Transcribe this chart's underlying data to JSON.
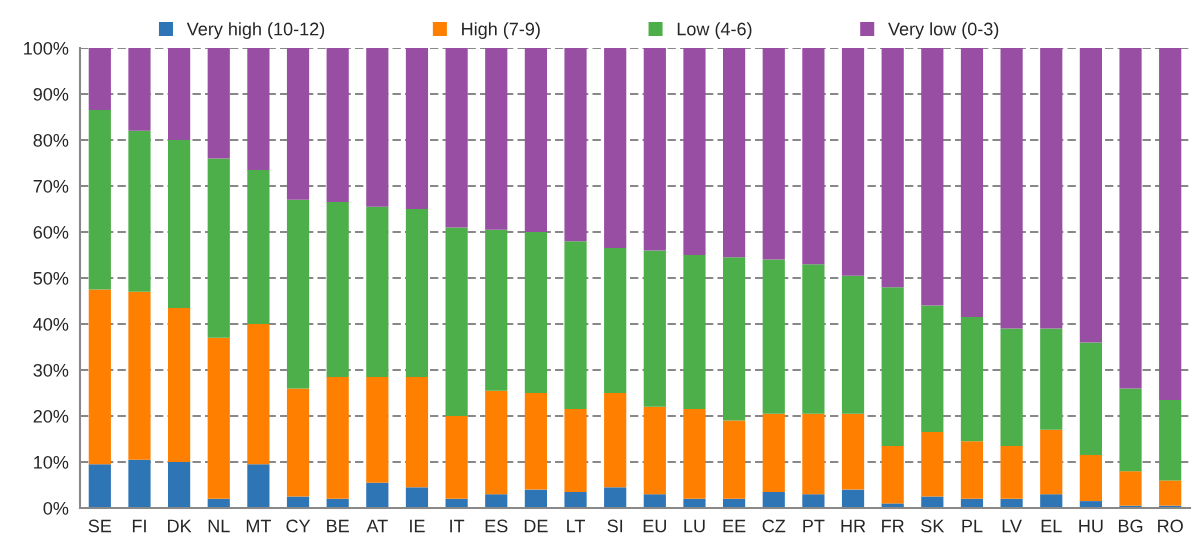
{
  "chart_data": {
    "type": "bar",
    "stacked": true,
    "categories": [
      "SE",
      "FI",
      "DK",
      "NL",
      "MT",
      "CY",
      "BE",
      "AT",
      "IE",
      "IT",
      "ES",
      "DE",
      "LT",
      "SI",
      "EU",
      "LU",
      "EE",
      "CZ",
      "PT",
      "HR",
      "FR",
      "SK",
      "PL",
      "LV",
      "EL",
      "HU",
      "BG",
      "RO"
    ],
    "series": [
      {
        "name": "Very high (10-12)",
        "color": "#2e75b6",
        "values": [
          9.5,
          10.5,
          10,
          2,
          9.5,
          2.5,
          2,
          5.5,
          4.5,
          2,
          3,
          4,
          3.5,
          4.5,
          3,
          2,
          2,
          3.5,
          3,
          4,
          1,
          2.5,
          2,
          2,
          3,
          1.5,
          0.5,
          0.5
        ]
      },
      {
        "name": "High (7-9)",
        "color": "#ff7f00",
        "values": [
          38,
          36.5,
          33.5,
          35,
          30.5,
          23.5,
          26.5,
          23,
          24,
          18,
          22.5,
          21,
          18,
          20.5,
          19,
          19.5,
          17,
          17,
          17.5,
          16.5,
          12.5,
          14,
          12.5,
          11.5,
          14,
          10,
          7.5,
          5.5
        ]
      },
      {
        "name": "Low (4-6)",
        "color": "#4daf4a",
        "values": [
          39,
          35,
          36.5,
          39,
          33.5,
          41,
          38,
          37,
          36.5,
          41,
          35,
          35,
          36.5,
          31.5,
          34,
          33.5,
          35.5,
          33.5,
          32.5,
          30,
          34.5,
          27.5,
          27,
          25.5,
          22,
          24.5,
          18,
          17.5
        ]
      },
      {
        "name": "Very low (0-3)",
        "color": "#984ea3",
        "values": [
          13.5,
          18,
          20,
          24,
          26.5,
          33,
          33.5,
          34.5,
          35,
          39,
          39.5,
          40,
          42,
          43.5,
          44,
          45,
          45.5,
          46,
          47,
          49.5,
          52,
          56,
          58.5,
          61,
          61,
          64,
          74,
          76.5
        ]
      }
    ],
    "ylim": [
      0,
      100
    ],
    "yticks": [
      {
        "value": 0,
        "label": "0%"
      },
      {
        "value": 10,
        "label": "10%"
      },
      {
        "value": 20,
        "label": "20%"
      },
      {
        "value": 30,
        "label": "30%"
      },
      {
        "value": 40,
        "label": "40%"
      },
      {
        "value": 50,
        "label": "50%"
      },
      {
        "value": 60,
        "label": "60%"
      },
      {
        "value": 70,
        "label": "70%"
      },
      {
        "value": 80,
        "label": "80%"
      },
      {
        "value": 90,
        "label": "90%"
      },
      {
        "value": 100,
        "label": "100%"
      }
    ],
    "grid": "y",
    "legend": "top"
  }
}
